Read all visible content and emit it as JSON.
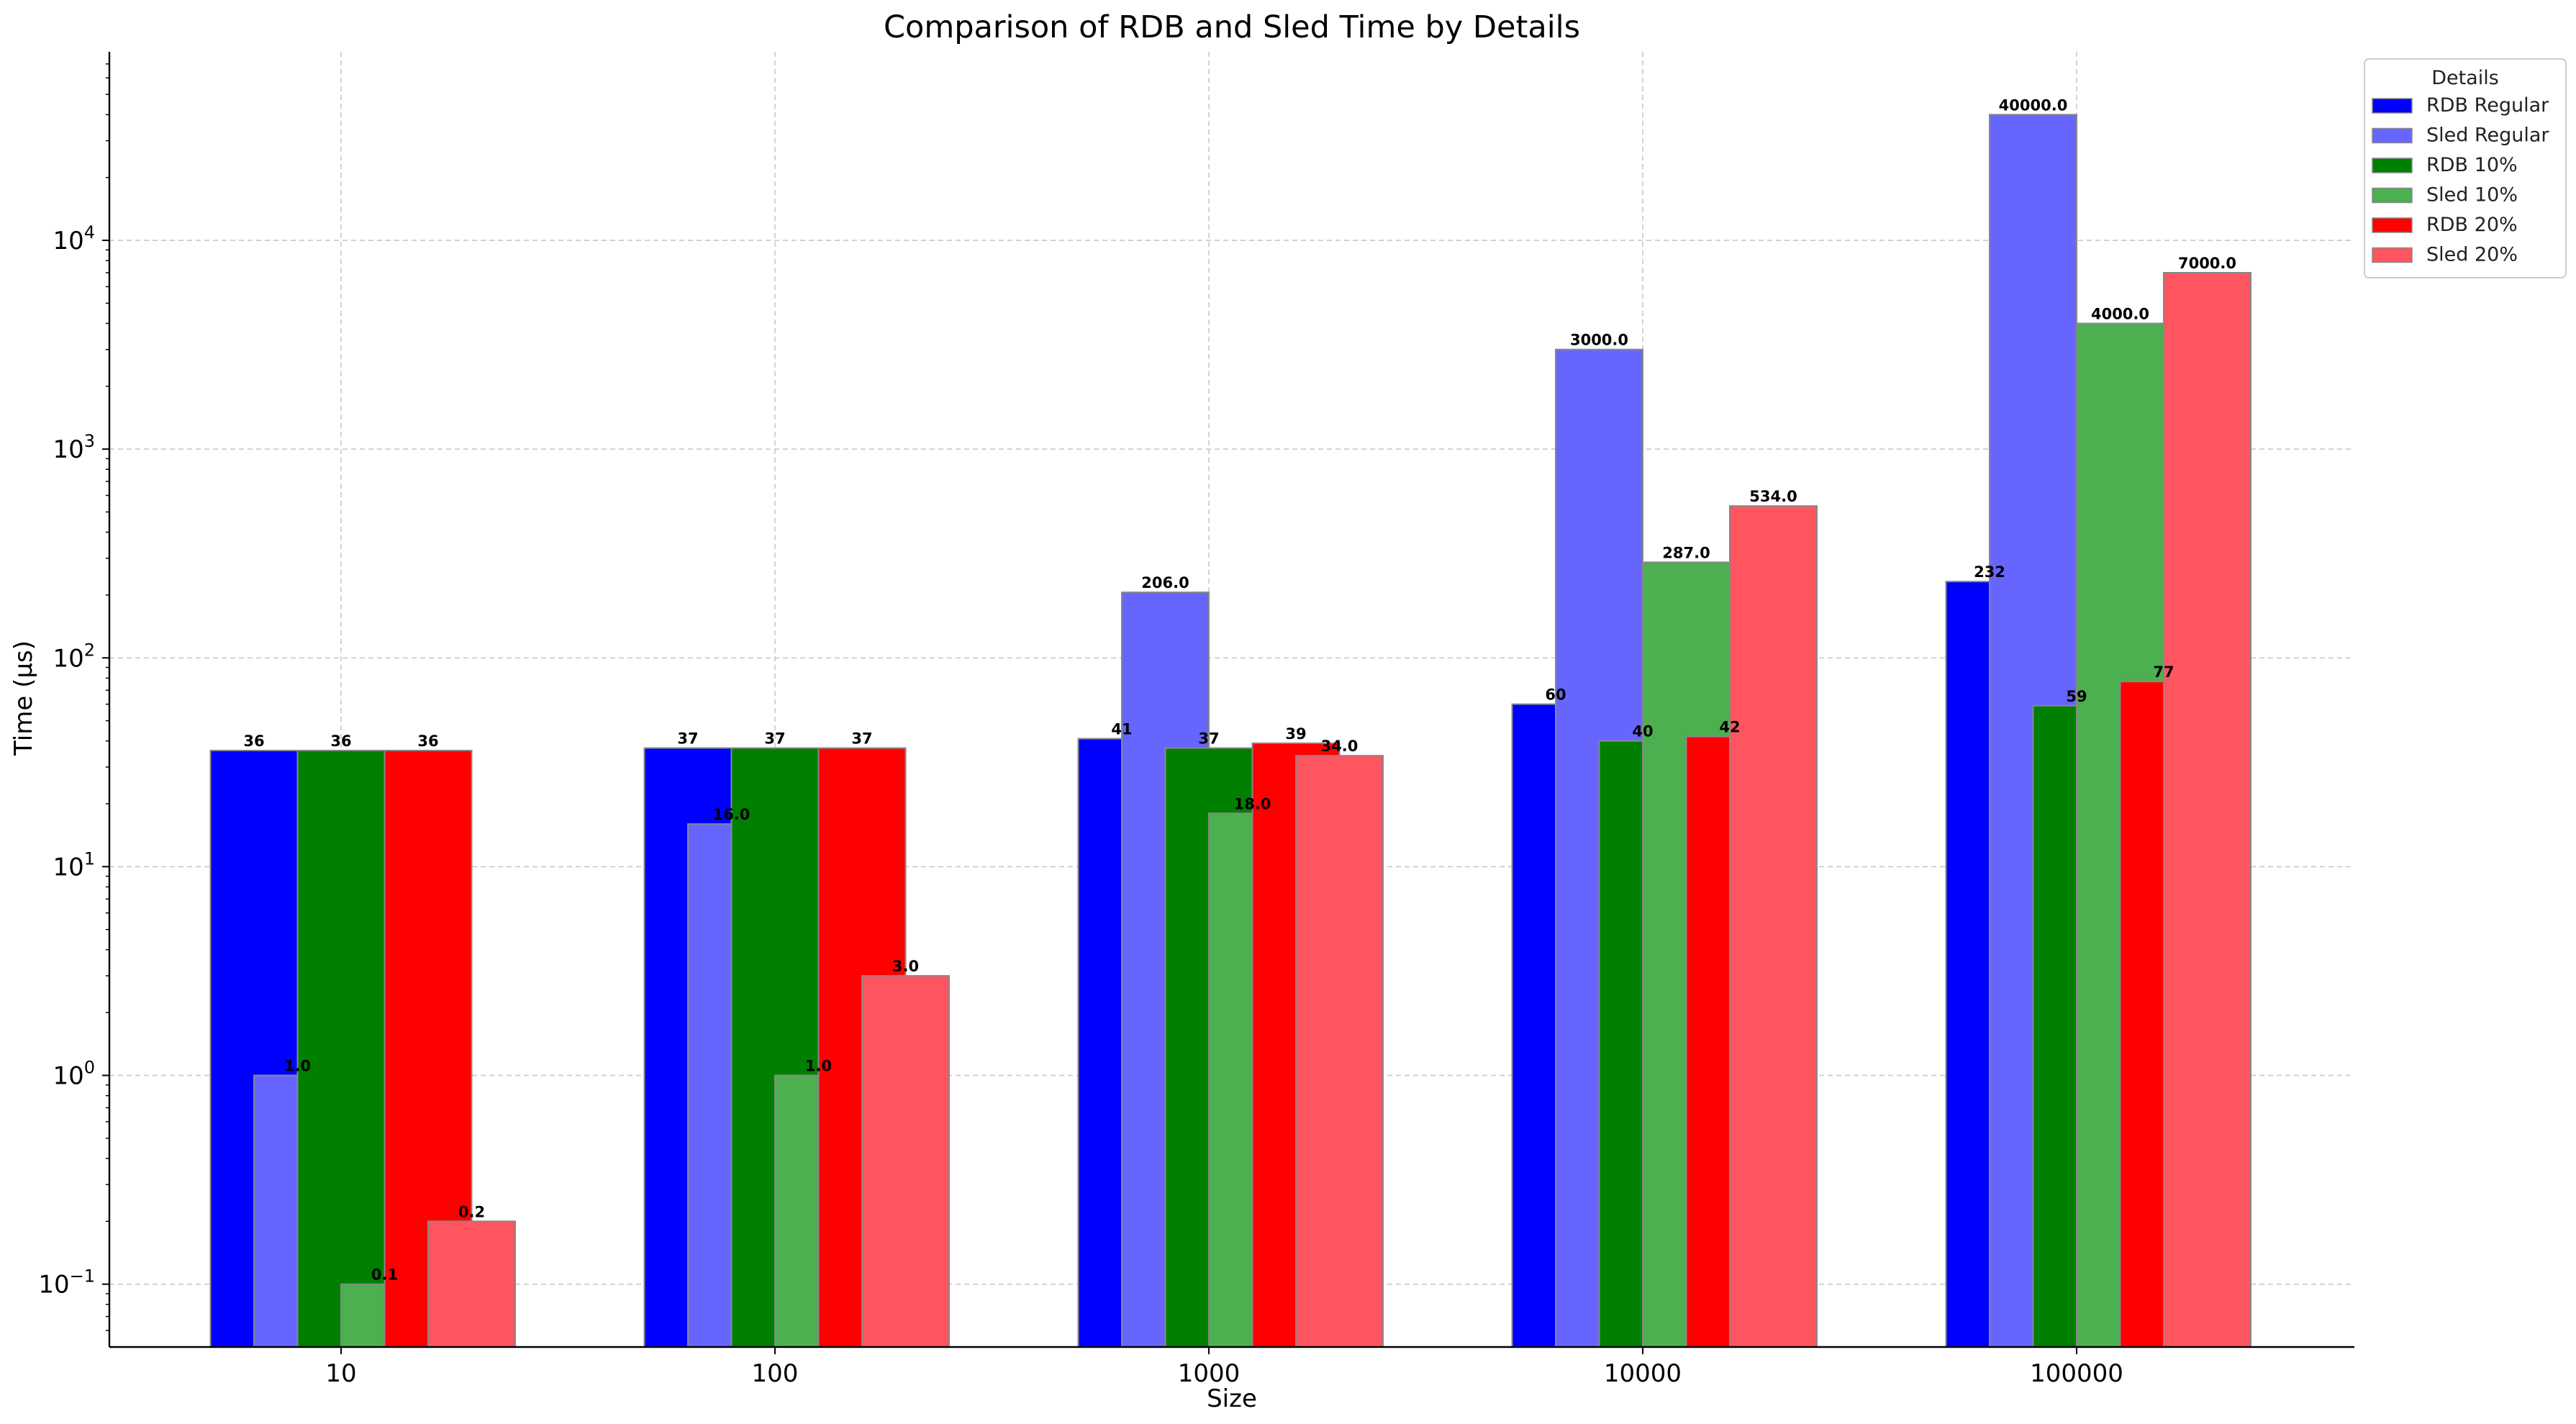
{
  "chart_data": {
    "type": "bar",
    "title": "Comparison of RDB and Sled Time by Details",
    "xlabel": "Size",
    "ylabel": "Time (µs)",
    "yscale": "log",
    "ylim": [
      0.05,
      80000
    ],
    "yticks": [
      {
        "value": 0.1,
        "base": "10",
        "exp": "−1"
      },
      {
        "value": 1,
        "base": "10",
        "exp": "0"
      },
      {
        "value": 10,
        "base": "10",
        "exp": "1"
      },
      {
        "value": 100,
        "base": "10",
        "exp": "2"
      },
      {
        "value": 1000,
        "base": "10",
        "exp": "3"
      },
      {
        "value": 10000,
        "base": "10",
        "exp": "4"
      }
    ],
    "grid": true,
    "legend_title": "Details",
    "legend_position": "upper-right-outside",
    "categories": [
      "10",
      "100",
      "1000",
      "10000",
      "100000"
    ],
    "series": [
      {
        "name": "RDB Regular",
        "color": "#0000ff",
        "values": [
          36,
          37,
          41,
          60,
          232
        ],
        "labels": [
          "36",
          "37",
          "41",
          "60",
          "232"
        ]
      },
      {
        "name": "Sled Regular",
        "color": "#6666ff",
        "values": [
          1.0,
          16.0,
          206.0,
          3000.0,
          40000.0
        ],
        "labels": [
          "1.0",
          "16.0",
          "206.0",
          "3000.0",
          "40000.0"
        ]
      },
      {
        "name": "RDB 10%",
        "color": "#008000",
        "values": [
          36,
          37,
          37,
          40,
          59
        ],
        "labels": [
          "36",
          "37",
          "37",
          "40",
          "59"
        ]
      },
      {
        "name": "Sled 10%",
        "color": "#4caf50",
        "values": [
          0.1,
          1.0,
          18.0,
          287.0,
          4000.0
        ],
        "labels": [
          "0.1",
          "1.0",
          "18.0",
          "287.0",
          "4000.0"
        ]
      },
      {
        "name": "RDB 20%",
        "color": "#ff0000",
        "values": [
          36,
          37,
          39,
          42,
          77
        ],
        "labels": [
          "36",
          "37",
          "39",
          "42",
          "77"
        ]
      },
      {
        "name": "Sled 20%",
        "color": "#ff5560",
        "values": [
          0.2,
          3.0,
          34.0,
          534.0,
          7000.0
        ],
        "labels": [
          "0.2",
          "3.0",
          "34.0",
          "534.0",
          "7000.0"
        ]
      }
    ]
  }
}
